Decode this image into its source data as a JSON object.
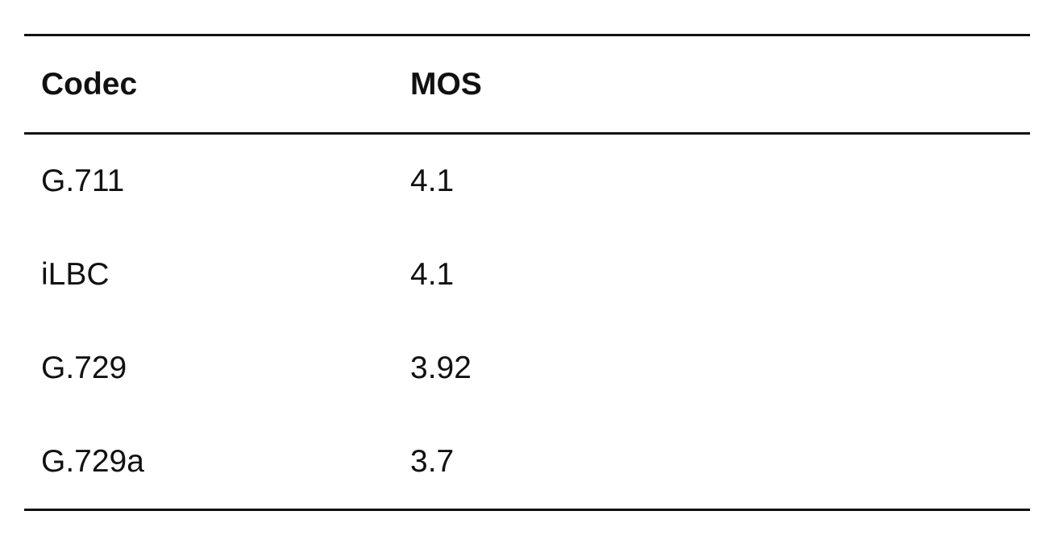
{
  "table": {
    "headers": [
      "Codec",
      "MOS"
    ],
    "rows": [
      [
        "G.711",
        "4.1"
      ],
      [
        "iLBC",
        "4.1"
      ],
      [
        "G.729",
        "3.92"
      ],
      [
        "G.729a",
        "3.7"
      ]
    ]
  }
}
